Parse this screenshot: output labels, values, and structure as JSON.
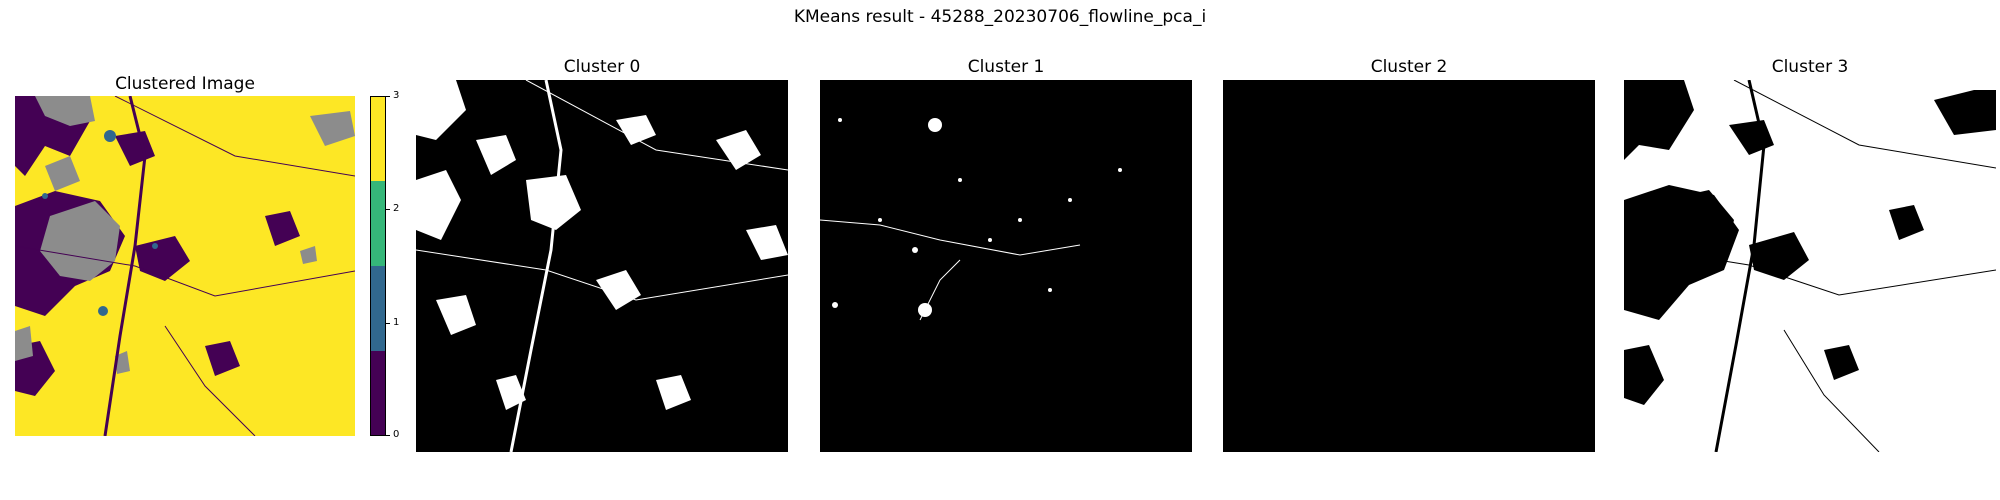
{
  "figure": {
    "suptitle": "KMeans result - 45288_20230706_flowline_pca_i"
  },
  "chart_data": [
    {
      "type": "heatmap",
      "title": "Clustered Image",
      "colormap": "viridis",
      "colors": [
        "#440154",
        "#31688e",
        "#35b779",
        "#fde725"
      ],
      "no_data_color": "#8c8c8c",
      "clusters": [
        0,
        1,
        2,
        3
      ],
      "colorbar": {
        "ticks": [
          "0",
          "1",
          "2",
          "3"
        ],
        "range": [
          0,
          3
        ]
      }
    },
    {
      "type": "heatmap",
      "title": "Cluster 0",
      "colormap": "binary",
      "foreground": "#ffffff",
      "background": "#000000",
      "coverage": 0.25
    },
    {
      "type": "heatmap",
      "title": "Cluster 1",
      "colormap": "binary",
      "foreground": "#ffffff",
      "background": "#000000",
      "coverage": 0.03
    },
    {
      "type": "heatmap",
      "title": "Cluster 2",
      "colormap": "binary",
      "foreground": "#ffffff",
      "background": "#000000",
      "coverage": 0.0
    },
    {
      "type": "heatmap",
      "title": "Cluster 3",
      "colormap": "binary",
      "foreground": "#ffffff",
      "background": "#000000",
      "coverage": 0.72
    }
  ]
}
